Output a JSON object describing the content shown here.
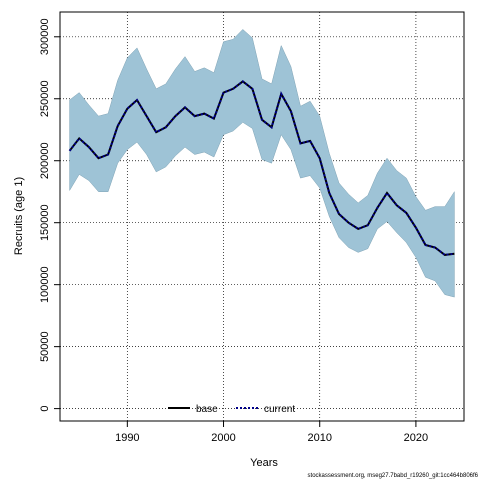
{
  "chart_data": {
    "type": "area",
    "xlabel": "Years",
    "ylabel": "Recruits (age 1)",
    "xlim": [
      1983,
      2025
    ],
    "ylim": [
      -10000,
      320000
    ],
    "x_ticks": [
      1990,
      2000,
      2010,
      2020
    ],
    "y_ticks": [
      0,
      50000,
      100000,
      150000,
      200000,
      250000,
      300000
    ],
    "grid": true,
    "legend_position": "bottom-center",
    "series": [
      {
        "name": "base",
        "style": "solid",
        "color": "#000000",
        "x": [
          1984,
          1985,
          1986,
          1987,
          1988,
          1989,
          1990,
          1991,
          1992,
          1993,
          1994,
          1995,
          1996,
          1997,
          1998,
          1999,
          2000,
          2001,
          2002,
          2003,
          2004,
          2005,
          2006,
          2007,
          2008,
          2009,
          2010,
          2011,
          2012,
          2013,
          2014,
          2015,
          2016,
          2017,
          2018,
          2019,
          2020,
          2021,
          2022,
          2023,
          2024
        ],
        "values": [
          208000,
          218000,
          211000,
          202000,
          205000,
          228000,
          242000,
          249000,
          236000,
          223000,
          227000,
          236000,
          243000,
          236000,
          238000,
          234000,
          255000,
          258000,
          264000,
          258000,
          233000,
          227000,
          254000,
          240000,
          214000,
          216000,
          202000,
          174000,
          157000,
          150000,
          145000,
          148000,
          162000,
          174000,
          164000,
          158000,
          146000,
          132000,
          130000,
          124000,
          125000
        ]
      },
      {
        "name": "current",
        "style": "dotted",
        "color": "#00008b",
        "x": [
          1984,
          1985,
          1986,
          1987,
          1988,
          1989,
          1990,
          1991,
          1992,
          1993,
          1994,
          1995,
          1996,
          1997,
          1998,
          1999,
          2000,
          2001,
          2002,
          2003,
          2004,
          2005,
          2006,
          2007,
          2008,
          2009,
          2010,
          2011,
          2012,
          2013,
          2014,
          2015,
          2016,
          2017,
          2018,
          2019,
          2020,
          2021,
          2022,
          2023,
          2024
        ],
        "values": [
          208000,
          218000,
          211000,
          202000,
          205000,
          228000,
          242000,
          249000,
          236000,
          223000,
          227000,
          236000,
          243000,
          236000,
          238000,
          234000,
          255000,
          258000,
          264000,
          258000,
          233000,
          227000,
          254000,
          240000,
          214000,
          216000,
          202000,
          174000,
          157000,
          150000,
          145000,
          148000,
          162000,
          174000,
          164000,
          158000,
          146000,
          132000,
          130000,
          124000,
          125000
        ]
      }
    ],
    "confidence_band": {
      "color": "#9ec3d6",
      "x": [
        1984,
        1985,
        1986,
        1987,
        1988,
        1989,
        1990,
        1991,
        1992,
        1993,
        1994,
        1995,
        1996,
        1997,
        1998,
        1999,
        2000,
        2001,
        2002,
        2003,
        2004,
        2005,
        2006,
        2007,
        2008,
        2009,
        2010,
        2011,
        2012,
        2013,
        2014,
        2015,
        2016,
        2017,
        2018,
        2019,
        2020,
        2021,
        2022,
        2023,
        2024
      ],
      "upper": [
        249000,
        255000,
        245000,
        236000,
        238000,
        265000,
        283000,
        291000,
        274000,
        258000,
        262000,
        274000,
        284000,
        272000,
        275000,
        271000,
        296000,
        298000,
        306000,
        299000,
        266000,
        262000,
        293000,
        276000,
        244000,
        248000,
        236000,
        206000,
        182000,
        173000,
        166000,
        172000,
        190000,
        202000,
        192000,
        186000,
        171000,
        160000,
        163000,
        163000,
        175000
      ],
      "lower": [
        176000,
        189000,
        184000,
        175000,
        175000,
        198000,
        209000,
        215000,
        205000,
        191000,
        195000,
        204000,
        211000,
        205000,
        207000,
        203000,
        221000,
        224000,
        231000,
        226000,
        201000,
        198000,
        221000,
        209000,
        186000,
        188000,
        178000,
        155000,
        138000,
        130000,
        126000,
        129000,
        145000,
        151000,
        142000,
        134000,
        122000,
        106000,
        103000,
        92000,
        90000
      ]
    },
    "legend": [
      "base",
      "current"
    ]
  },
  "footnote": "stockassessment.org, mseg27.7babd_r19260_git:1cc464b806f6"
}
